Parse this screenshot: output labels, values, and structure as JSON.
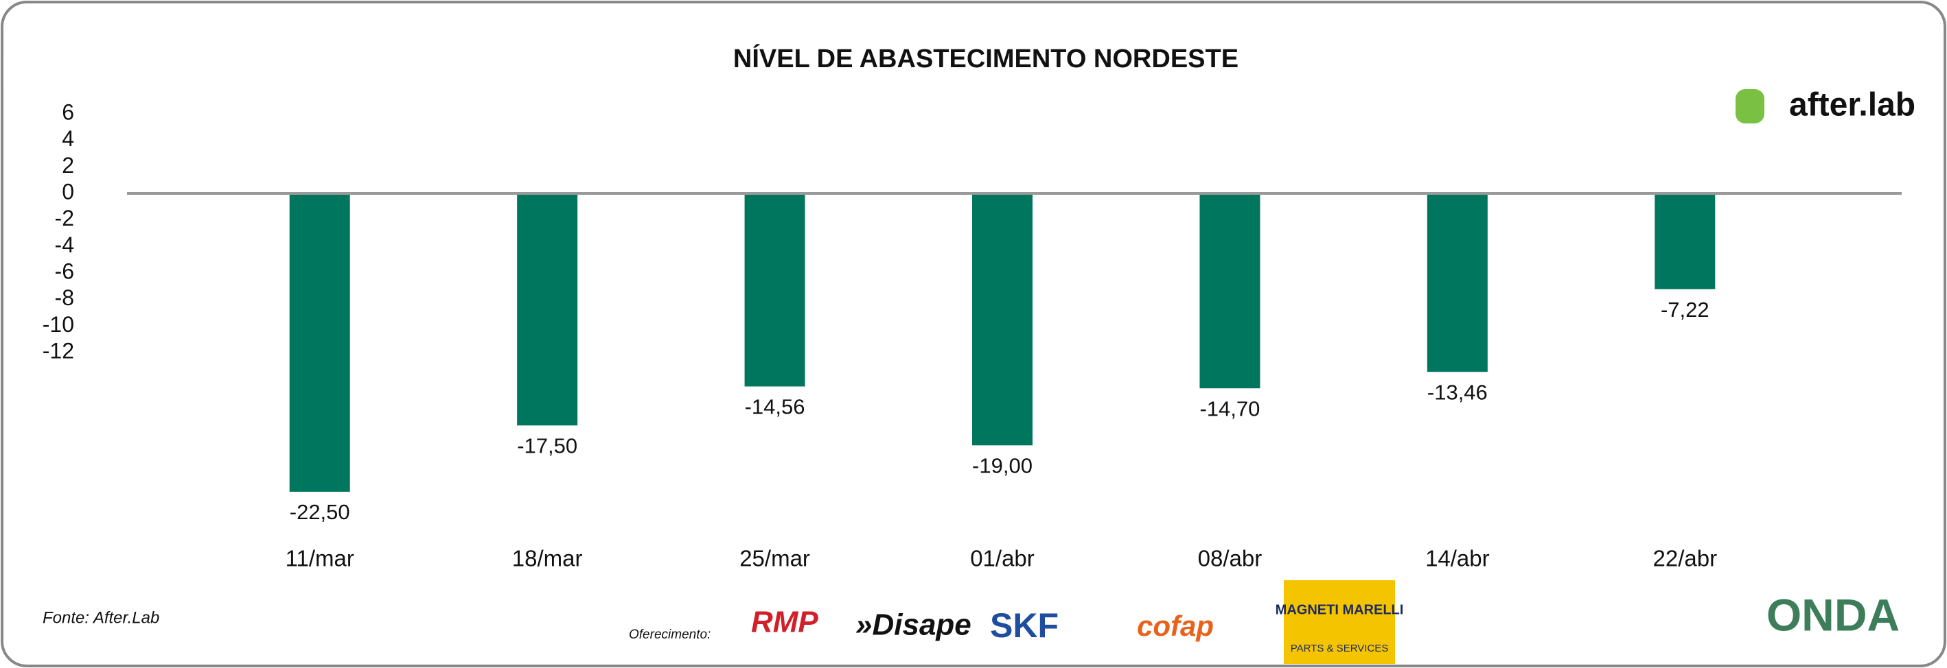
{
  "chart_data": {
    "type": "bar",
    "title": "NÍVEL DE ABASTECIMENTO NORDESTE",
    "categories": [
      "11/mar",
      "18/mar",
      "25/mar",
      "01/abr",
      "08/abr",
      "14/abr",
      "22/abr"
    ],
    "values": [
      -22.5,
      -17.5,
      -14.56,
      -19.0,
      -14.7,
      -13.46,
      -7.22
    ],
    "value_labels": [
      "-22,50",
      "-17,50",
      "-14,56",
      "-19,00",
      "-14,70",
      "-13,46",
      "-7,22"
    ],
    "color": "#00765e",
    "ylim": [
      -24,
      6
    ],
    "yticks": [
      6,
      4,
      2,
      0,
      -2,
      -4,
      -6,
      -8,
      -10,
      -12
    ],
    "grid": false,
    "source": "Fonte: After.Lab"
  },
  "branding": {
    "logo": "after.lab",
    "sponsor_label": "Oferecimento:",
    "sponsors": [
      "RMP",
      "»Disape",
      "SKF",
      "cofap",
      "MAGNETI MARELLI",
      "PARTS & SERVICES"
    ],
    "footer_logo": "ONDA"
  }
}
